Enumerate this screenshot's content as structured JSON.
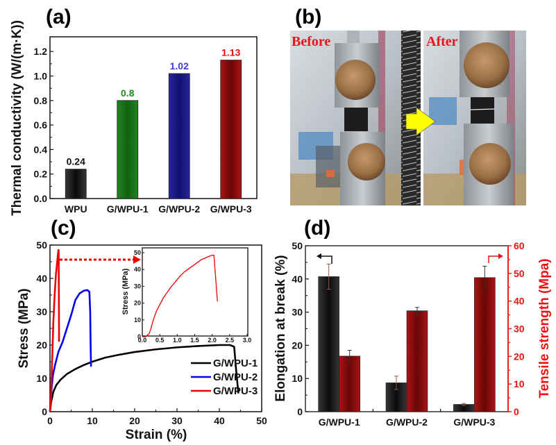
{
  "panels": {
    "a": "(a)",
    "b": "(b)",
    "c": "(c)",
    "d": "(d)"
  },
  "photo": {
    "before_label": "Before",
    "after_label": "After",
    "arrow_color": "#ffff00"
  },
  "chart_data": [
    {
      "id": "a",
      "type": "bar",
      "title": "",
      "xlabel": "",
      "ylabel": "Thermal conductivity (W/(m·K))",
      "categories": [
        "WPU",
        "G/WPU-1",
        "G/WPU-2",
        "G/WPU-3"
      ],
      "values": [
        0.24,
        0.8,
        1.02,
        1.13
      ],
      "data_labels": [
        "0.24",
        "0.8",
        "1.02",
        "1.13"
      ],
      "colors": [
        "#1a1a1a",
        "#118811",
        "#1a1aa8",
        "#b00000"
      ],
      "label_colors": [
        "#111111",
        "#1f8a1f",
        "#3a3ae0",
        "#e01010"
      ],
      "ylim": [
        0,
        1.32
      ],
      "yticks": [
        0.0,
        0.2,
        0.4,
        0.6,
        0.8,
        1.0,
        1.2
      ],
      "ytick_labels": [
        "0.0",
        "0.2",
        "0.4",
        "0.6",
        "0.8",
        "1.0",
        "1.2"
      ],
      "grid": false
    },
    {
      "id": "c",
      "type": "line",
      "xlabel": "Strain (%)",
      "ylabel": "Stress (MPa)",
      "xlim": [
        0,
        50
      ],
      "ylim": [
        0,
        50
      ],
      "xticks": [
        0,
        10,
        20,
        30,
        40,
        50
      ],
      "yticks": [
        0,
        10,
        20,
        30,
        40,
        50
      ],
      "grid": false,
      "legend_position": "center-right",
      "series": [
        {
          "name": "G/WPU-1",
          "color": "#000000",
          "x": [
            0,
            0.3,
            0.8,
            1.5,
            2.5,
            4,
            6,
            8,
            10,
            13,
            16,
            20,
            25,
            30,
            35,
            40,
            42.5,
            43.5,
            44,
            44.5
          ],
          "y": [
            0,
            3,
            6,
            8,
            9.6,
            11.3,
            12.8,
            14,
            15,
            16.2,
            17,
            17.9,
            18.7,
            19.3,
            19.7,
            20,
            20,
            19.5,
            12,
            5.5
          ]
        },
        {
          "name": "G/WPU-2",
          "color": "#0000ee",
          "x": [
            0,
            0.3,
            0.7,
            1.2,
            2,
            3,
            4,
            5,
            6,
            7,
            8,
            8.8,
            9.3,
            9.5,
            9.6,
            9.7
          ],
          "y": [
            0,
            6,
            11,
            14,
            18,
            21,
            25,
            29,
            33.5,
            35.5,
            36.3,
            36.5,
            36,
            30,
            20,
            13.5
          ]
        },
        {
          "name": "G/WPU-3",
          "color": "#ee0000",
          "x": [
            0,
            0.2,
            0.5,
            0.8,
            1.1,
            1.4,
            1.7,
            2.0,
            2.05,
            2.1,
            2.15
          ],
          "y": [
            0,
            2,
            15,
            27,
            35,
            41,
            45,
            48.5,
            48.5,
            35,
            21
          ]
        }
      ],
      "annotation": "dotted red arrow from G/WPU-3 peak to inset",
      "inset": {
        "xlabel": "",
        "ylabel": "Stress (MPa)",
        "xlim": [
          0,
          3.0
        ],
        "ylim": [
          0,
          52
        ],
        "xticks": [
          0.0,
          0.5,
          1.0,
          1.5,
          2.0,
          2.5,
          3.0
        ],
        "xtick_labels": [
          "0.0",
          "0.5",
          "1.0",
          "1.5",
          "2.0",
          "2.5",
          "3.0"
        ],
        "yticks": [
          0,
          10,
          20,
          30,
          40,
          50
        ],
        "series": [
          {
            "name": "G/WPU-3",
            "color": "#ee0000",
            "x": [
              0,
              0.1,
              0.2,
              0.25,
              0.3,
              0.35,
              0.4,
              0.5,
              0.6,
              0.7,
              0.8,
              0.9,
              1.0,
              1.1,
              1.2,
              1.3,
              1.4,
              1.5,
              1.6,
              1.7,
              1.8,
              1.9,
              2.0,
              2.05,
              2.1,
              2.15
            ],
            "y": [
              0,
              0,
              2,
              5,
              9,
              12,
              15,
              19,
              23,
              26,
              29,
              31.5,
              34,
              36.5,
              38.5,
              40,
              41.5,
              43,
              44.5,
              46,
              46.8,
              47.8,
              48.5,
              48.5,
              35,
              21
            ]
          }
        ]
      }
    },
    {
      "id": "d",
      "type": "bar",
      "xlabel": "",
      "ylabel": "Elongation at break (%)",
      "ylabel_right": "Tensile strength (Mpa)",
      "categories": [
        "G/WPU-1",
        "G/WPU-2",
        "G/WPU-3"
      ],
      "ylim": [
        0,
        50
      ],
      "ylim_right": [
        0,
        60
      ],
      "yticks": [
        0,
        10,
        20,
        30,
        40,
        50
      ],
      "yticks_right": [
        0,
        10,
        20,
        30,
        40,
        50,
        60
      ],
      "grid": false,
      "series": [
        {
          "name": "Elongation at break",
          "axis": "left",
          "color": "#1a1a1a",
          "values": [
            40.7,
            8.7,
            2.2
          ],
          "errors": [
            3.8,
            2.0,
            0.3
          ]
        },
        {
          "name": "Tensile strength",
          "axis": "right",
          "color": "#b00000",
          "values": [
            20.1,
            36.5,
            48.5
          ],
          "errors": [
            2.1,
            1.2,
            4.1
          ]
        }
      ],
      "annotations": [
        "left arrow pointing to left axis above G/WPU-1",
        "right arrow pointing to right axis above G/WPU-3"
      ],
      "right_axis_color": "#ee1111"
    }
  ]
}
